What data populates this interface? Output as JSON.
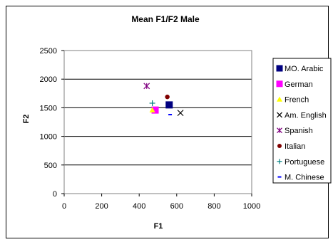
{
  "chart_data": {
    "type": "scatter",
    "title": "Mean F1/F2 Male",
    "xlabel": "F1",
    "ylabel": "F2",
    "xlim": [
      0,
      1000
    ],
    "ylim": [
      0,
      2500
    ],
    "x_ticks": [
      "0",
      "200",
      "400",
      "600",
      "800",
      "1000"
    ],
    "y_ticks": [
      "0",
      "500",
      "1000",
      "1500",
      "2000",
      "2500"
    ],
    "grid": "horizontal",
    "legend_position": "right",
    "series": [
      {
        "name": "MO. Arabic",
        "marker": "square",
        "color": "#000080",
        "x": 560,
        "y": 1550
      },
      {
        "name": "German",
        "marker": "square",
        "color": "#ff00ff",
        "x": 485,
        "y": 1460
      },
      {
        "name": "French",
        "marker": "triangle",
        "color": "#ffff00",
        "x": 470,
        "y": 1460
      },
      {
        "name": "Am. English",
        "marker": "x",
        "color": "#000000",
        "x": 620,
        "y": 1410
      },
      {
        "name": "Spanish",
        "marker": "star",
        "color": "#800080",
        "x": 440,
        "y": 1880
      },
      {
        "name": "Italian",
        "marker": "circle",
        "color": "#800000",
        "x": 550,
        "y": 1690
      },
      {
        "name": "Portuguese",
        "marker": "plus",
        "color": "#008080",
        "x": 470,
        "y": 1580
      },
      {
        "name": "M. Chinese",
        "marker": "dash",
        "color": "#0000ff",
        "x": 565,
        "y": 1380
      }
    ]
  }
}
